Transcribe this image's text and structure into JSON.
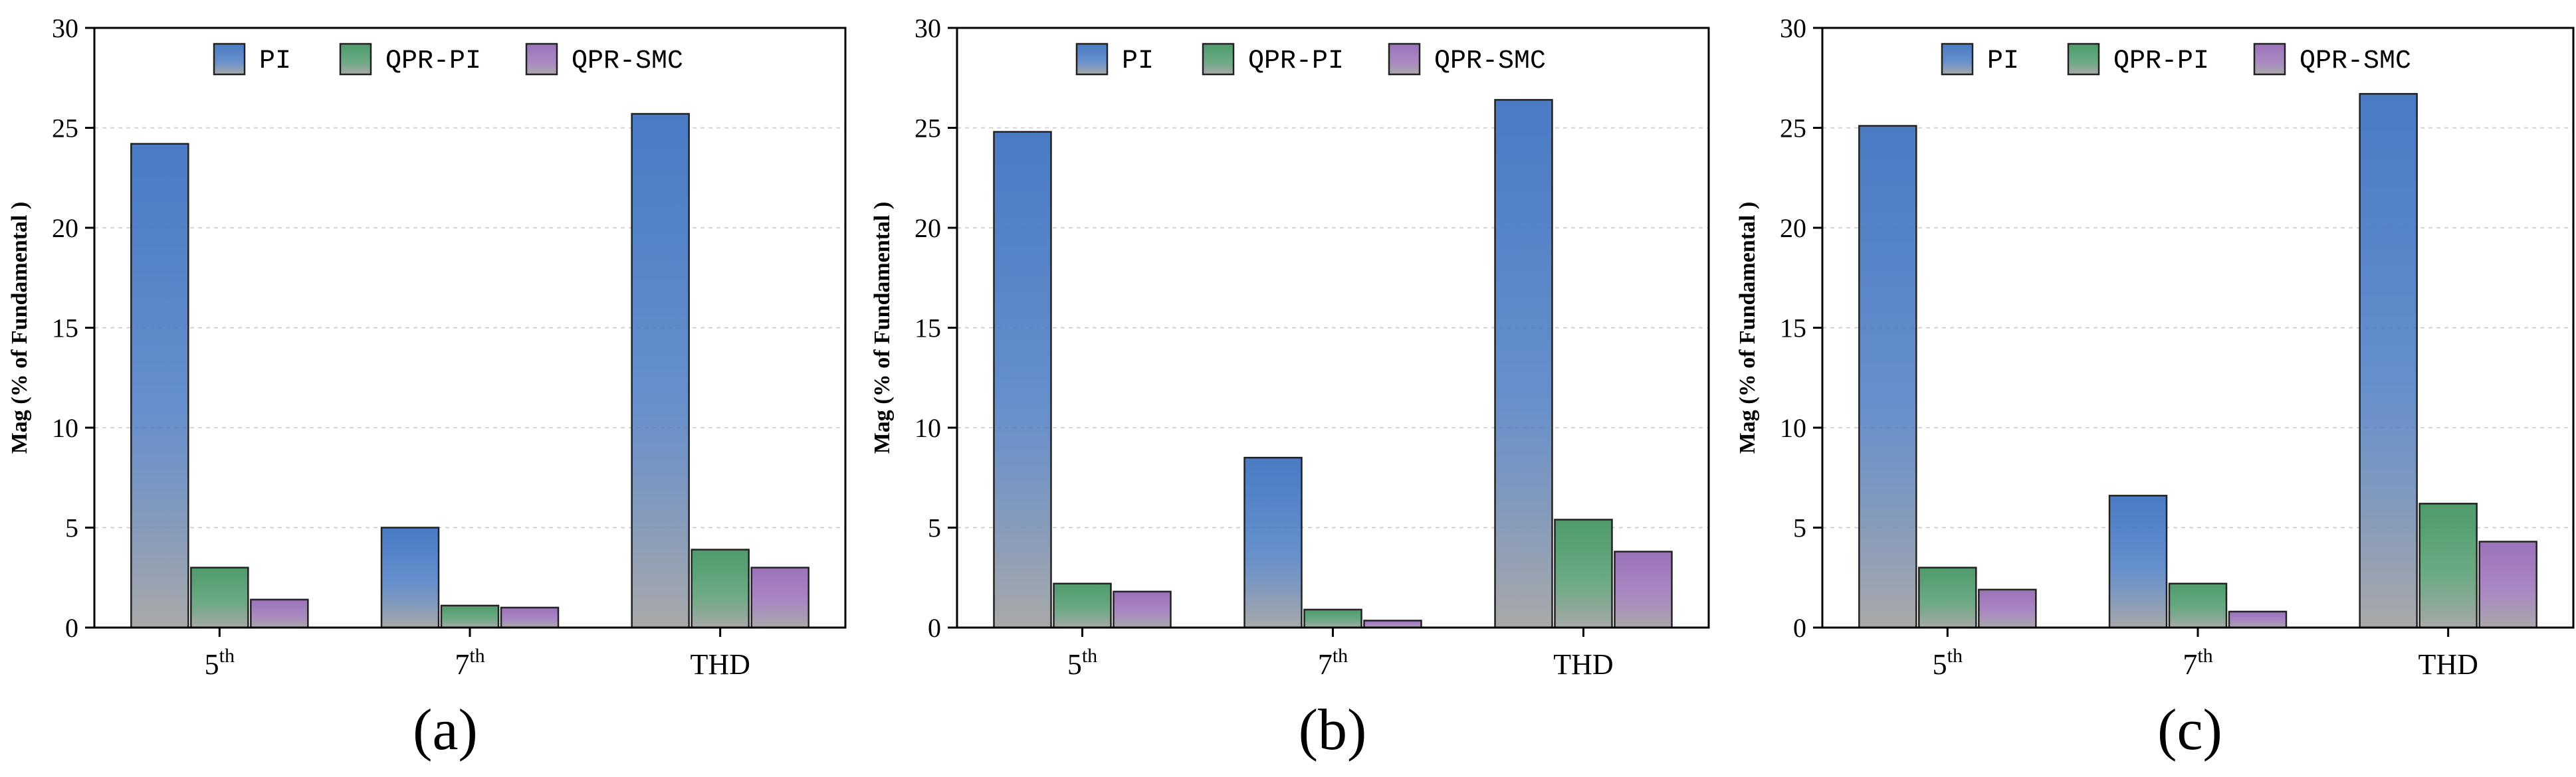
{
  "chart_data": [
    {
      "type": "bar",
      "panel_label": "(a)",
      "ylabel": "Mag (% of Fundamental )",
      "ylim": [
        0,
        30
      ],
      "yticks": [
        "0",
        "5",
        "10",
        "15",
        "20",
        "25",
        "30"
      ],
      "categories": [
        {
          "base": "5",
          "sup": "th"
        },
        {
          "base": "7",
          "sup": "th"
        },
        {
          "base": "THD",
          "sup": ""
        }
      ],
      "series": [
        {
          "name": "PI",
          "values": [
            24.2,
            5.0,
            25.7
          ]
        },
        {
          "name": "QPR-PI",
          "values": [
            3.0,
            1.1,
            3.9
          ]
        },
        {
          "name": "QPR-SMC",
          "values": [
            1.4,
            1.0,
            3.0
          ]
        }
      ],
      "legend_position": "top-center",
      "grid": true
    },
    {
      "type": "bar",
      "panel_label": "(b)",
      "ylabel": "Mag (% of Fundamental )",
      "ylim": [
        0,
        30
      ],
      "yticks": [
        "0",
        "5",
        "10",
        "15",
        "20",
        "25",
        "30"
      ],
      "categories": [
        {
          "base": "5",
          "sup": "th"
        },
        {
          "base": "7",
          "sup": "th"
        },
        {
          "base": "THD",
          "sup": ""
        }
      ],
      "series": [
        {
          "name": "PI",
          "values": [
            24.8,
            8.5,
            26.4
          ]
        },
        {
          "name": "QPR-PI",
          "values": [
            2.2,
            0.9,
            5.4
          ]
        },
        {
          "name": "QPR-SMC",
          "values": [
            1.8,
            0.35,
            3.8
          ]
        }
      ],
      "legend_position": "top-center",
      "grid": true
    },
    {
      "type": "bar",
      "panel_label": "(c)",
      "ylabel": "Mag (% of Fundamental )",
      "ylim": [
        0,
        30
      ],
      "yticks": [
        "0",
        "5",
        "10",
        "15",
        "20",
        "25",
        "30"
      ],
      "categories": [
        {
          "base": "5",
          "sup": "th"
        },
        {
          "base": "7",
          "sup": "th"
        },
        {
          "base": "THD",
          "sup": ""
        }
      ],
      "series": [
        {
          "name": "PI",
          "values": [
            25.1,
            6.6,
            26.7
          ]
        },
        {
          "name": "QPR-PI",
          "values": [
            3.0,
            2.2,
            6.2
          ]
        },
        {
          "name": "QPR-SMC",
          "values": [
            1.9,
            0.8,
            4.3
          ]
        }
      ],
      "legend_position": "top-center",
      "grid": true
    }
  ],
  "colors": {
    "PI": "#4a7bc4",
    "QPR-PI": "#4f9a6c",
    "QPR-SMC": "#9a72b8",
    "bar_base": "#a9a9a9"
  }
}
